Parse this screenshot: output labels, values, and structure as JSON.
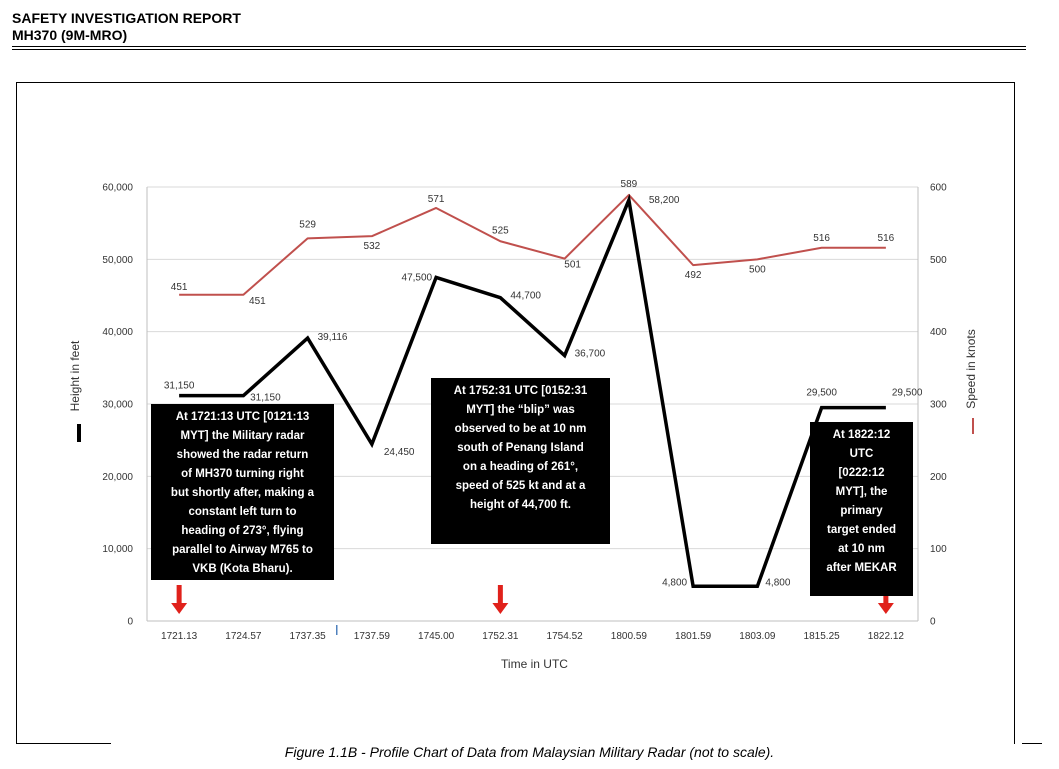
{
  "header": {
    "line1": "SAFETY INVESTIGATION REPORT",
    "line2": "MH370 (9M-MRO)"
  },
  "caption": "Figure 1.1B - Profile Chart of Data from Malaysian Military Radar (not to scale).",
  "chart_data": {
    "type": "line",
    "xlabel": "Time in UTC",
    "ylabel_left": "Height in feet",
    "ylabel_right": "Speed in knots",
    "categories": [
      "1721.13",
      "1724.57",
      "1737.35",
      "1737.59",
      "1745.00",
      "1752.31",
      "1754.52",
      "1800.59",
      "1801.59",
      "1803.09",
      "1815.25",
      "1822.12"
    ],
    "ylim_left": [
      0,
      60000
    ],
    "ylim_right": [
      0,
      600
    ],
    "yticks_left": [
      "0",
      "10,000",
      "20,000",
      "30,000",
      "40,000",
      "50,000",
      "60,000"
    ],
    "yticks_right": [
      "0",
      "100",
      "200",
      "300",
      "400",
      "500",
      "600"
    ],
    "series": [
      {
        "name": "Height in feet",
        "axis": "left",
        "color": "#000000",
        "values": [
          31150,
          31150,
          39116,
          24450,
          47500,
          44700,
          36700,
          58200,
          4800,
          4800,
          29500,
          29500
        ],
        "labels": [
          "31,150",
          "31,150",
          "39,116",
          "24,450",
          "47,500",
          "44,700",
          "36,700",
          "58,200",
          "4,800",
          "4,800",
          "29,500",
          "29,500"
        ]
      },
      {
        "name": "Speed in knots",
        "axis": "right",
        "color": "#c0504d",
        "values": [
          451,
          451,
          529,
          532,
          571,
          525,
          501,
          589,
          492,
          500,
          516,
          516
        ],
        "labels": [
          "451",
          "451",
          "529",
          "532",
          "571",
          "525",
          "501",
          "589",
          "492",
          "500",
          "516",
          "516"
        ]
      }
    ],
    "annotations": [
      {
        "index": 0,
        "lines": [
          "At 1721:13 UTC [0121:13",
          "MYT] the Military radar",
          "showed the radar return",
          "of MH370 turning right",
          "but shortly after, making a",
          "constant left turn to",
          "heading of 273°, flying",
          "parallel to Airway M765 to",
          "VKB (Kota Bharu)."
        ]
      },
      {
        "index": 5,
        "lines": [
          "At 1752:31 UTC [0152:31",
          "MYT] the “blip” was",
          "observed to be at 10 nm",
          "south of Penang Island",
          "on a heading of 261°,",
          "speed of 525 kt and at a",
          "height of 44,700 ft."
        ]
      },
      {
        "index": 11,
        "lines": [
          "At 1822:12",
          "UTC",
          "[0222:12",
          "MYT], the",
          "primary",
          "target ended",
          "at 10 nm",
          "after MEKAR"
        ]
      }
    ],
    "arrow_color": "#e0211b"
  }
}
